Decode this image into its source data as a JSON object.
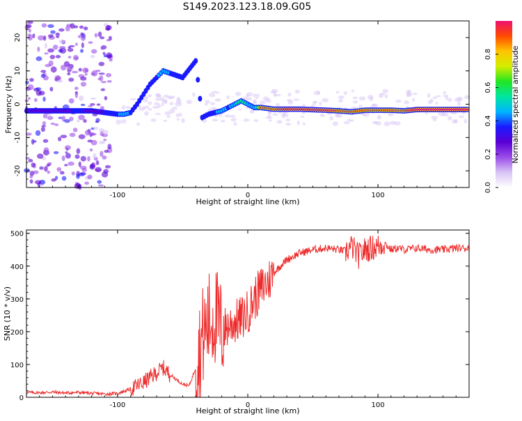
{
  "title": "S149.2023.123.18.09.G05",
  "chart_data": [
    {
      "type": "heatmap",
      "xlabel": "Height of straight line (km)",
      "ylabel": "Frequency (Hz)",
      "xlim": [
        -170,
        170
      ],
      "ylim": [
        -25,
        25
      ],
      "xticks": [
        -100,
        0,
        100
      ],
      "yticks": [
        -20,
        -10,
        0,
        10,
        20
      ],
      "colorbar": {
        "label": "Normalized spectral amplitude",
        "range": [
          0,
          1
        ],
        "ticks": [
          "0.0",
          "0.2",
          "0.4",
          "0.6",
          "0.8"
        ],
        "colormap": [
          "#ffffff",
          "#d8c4f5",
          "#9b4de8",
          "#5a00d6",
          "#1a1aff",
          "#00b4ff",
          "#00e6a0",
          "#22e622",
          "#d4ee00",
          "#ffc400",
          "#ff4a00",
          "#ee1070"
        ]
      },
      "ridge": [
        [
          -170,
          -2,
          0.3
        ],
        [
          -160,
          -2,
          0.35
        ],
        [
          -150,
          -2,
          0.3
        ],
        [
          -140,
          -2,
          0.35
        ],
        [
          -130,
          -2,
          0.45
        ],
        [
          -120,
          -2,
          0.3
        ],
        [
          -100,
          -3,
          0.5
        ],
        [
          -95,
          -3,
          0.55
        ],
        [
          -90,
          -2.5,
          0.5
        ],
        [
          -85,
          0,
          0.45
        ],
        [
          -80,
          3,
          0.4
        ],
        [
          -75,
          6,
          0.5
        ],
        [
          -70,
          8,
          0.5
        ],
        [
          -65,
          10,
          0.55
        ],
        [
          -50,
          8,
          0.45
        ],
        [
          -40,
          13,
          0.45
        ],
        [
          -35,
          -4,
          0.45
        ],
        [
          -30,
          -3,
          0.45
        ],
        [
          -25,
          -2.5,
          0.5
        ],
        [
          -20,
          -2,
          0.55
        ],
        [
          -15,
          -1,
          0.5
        ],
        [
          -10,
          0,
          0.6
        ],
        [
          -5,
          1,
          0.7
        ],
        [
          0,
          0,
          0.6
        ],
        [
          5,
          -1,
          0.6
        ],
        [
          10,
          -1,
          0.9
        ],
        [
          20,
          -1.5,
          0.95
        ],
        [
          40,
          -1.5,
          1.0
        ],
        [
          60,
          -1.8,
          0.98
        ],
        [
          70,
          -2,
          0.95
        ],
        [
          80,
          -2.3,
          0.95
        ],
        [
          90,
          -1.8,
          0.9
        ],
        [
          100,
          -1.8,
          0.95
        ],
        [
          110,
          -1.8,
          0.95
        ],
        [
          120,
          -2,
          0.95
        ],
        [
          130,
          -1.6,
          1.0
        ],
        [
          150,
          -1.6,
          1.0
        ],
        [
          170,
          -1.6,
          1.0
        ]
      ]
    },
    {
      "type": "line",
      "xlabel": "Height of straight line (km)",
      "ylabel": "SNR (10 * v/v)",
      "xlim": [
        -170,
        170
      ],
      "ylim": [
        0,
        510
      ],
      "xticks": [
        -100,
        0,
        100
      ],
      "yticks": [
        0,
        100,
        200,
        300,
        400,
        500
      ],
      "color": "#ee2a2a",
      "series": [
        {
          "x": [
            -170,
            -160,
            -150,
            -140,
            -130,
            -120,
            -110,
            -100,
            -90,
            -80,
            -75,
            -70,
            -65,
            -60,
            -55,
            -50,
            -45,
            -40,
            -35,
            -30,
            -25,
            -20,
            -15,
            -10,
            -5,
            0,
            5,
            10,
            15,
            20,
            25,
            30,
            35,
            40,
            50,
            60,
            70,
            75,
            80,
            85,
            90,
            95,
            100,
            105,
            110,
            115,
            120,
            130,
            140,
            150,
            160,
            170
          ],
          "y": [
            15,
            14,
            16,
            13,
            15,
            12,
            10,
            12,
            25,
            45,
            60,
            75,
            90,
            70,
            55,
            40,
            35,
            90,
            180,
            230,
            250,
            200,
            220,
            230,
            240,
            260,
            300,
            330,
            350,
            380,
            400,
            420,
            430,
            440,
            450,
            455,
            450,
            445,
            460,
            430,
            450,
            455,
            460,
            470,
            450,
            455,
            450,
            455,
            450,
            450,
            455,
            455
          ]
        }
      ]
    }
  ]
}
